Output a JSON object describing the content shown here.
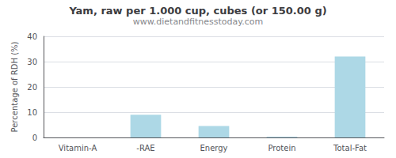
{
  "chart_data": {
    "type": "bar",
    "title": "Yam, raw per 1.000 cup, cubes (or 150.00 g)",
    "subtitle": "www.dietandfitnesstoday.com",
    "categories": [
      "Vitamin-A",
      "-RAE",
      "Energy",
      "Protein",
      "Total-Fat"
    ],
    "values": [
      0,
      9,
      4.5,
      0.3,
      32
    ],
    "color": "#add8e6",
    "ylabel": "Percentage of RDH (%)",
    "ylim": [
      0,
      40
    ],
    "yticks": [
      0,
      10,
      20,
      30,
      40
    ],
    "grid": true
  }
}
